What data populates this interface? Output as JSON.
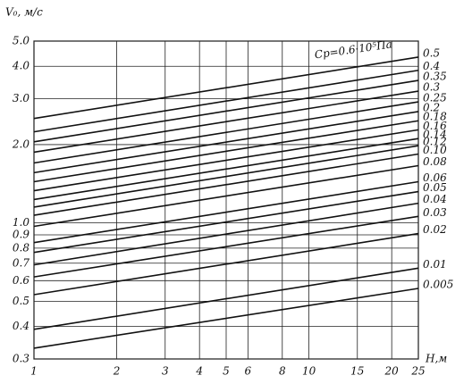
{
  "chart_data": {
    "type": "line",
    "y_label": "V₀, м/с",
    "x_label": "H,м",
    "annotation": "Cp=0.6·10⁵Па",
    "log_x": true,
    "log_y": true,
    "grid": true,
    "color": "#111111",
    "xlim": [
      1,
      25
    ],
    "xticks": [
      1,
      2,
      3,
      4,
      5,
      6,
      8,
      10,
      15,
      20,
      25
    ],
    "ylim": [
      0.3,
      5.0
    ],
    "yticks": [
      0.3,
      0.4,
      0.5,
      0.6,
      0.7,
      0.8,
      0.9,
      {
        "value": 1,
        "label": "1.0"
      },
      {
        "value": 2,
        "label": "2.0"
      },
      {
        "value": 3,
        "label": "3.0"
      },
      {
        "value": 4,
        "label": "4.0"
      },
      {
        "value": 5,
        "label": "5.0"
      }
    ],
    "x": [
      1,
      25
    ],
    "series": [
      {
        "name": "0.5",
        "values": [
          2.52,
          4.34
        ]
      },
      {
        "name": "0.4",
        "values": [
          2.24,
          3.86
        ]
      },
      {
        "name": "0.35",
        "values": [
          2.05,
          3.53
        ]
      },
      {
        "name": "0.3",
        "values": [
          1.87,
          3.21
        ]
      },
      {
        "name": "0.25",
        "values": [
          1.7,
          2.92
        ]
      },
      {
        "name": "0.2",
        "values": [
          1.56,
          2.68
        ]
      },
      {
        "name": "0.18",
        "values": [
          1.44,
          2.47
        ]
      },
      {
        "name": "0.16",
        "values": [
          1.33,
          2.28
        ]
      },
      {
        "name": "0.14",
        "values": [
          1.23,
          2.11
        ]
      },
      {
        "name": "0.12",
        "values": [
          1.15,
          1.98
        ]
      },
      {
        "name": "0.10",
        "values": [
          1.07,
          1.84
        ]
      },
      {
        "name": "0.08",
        "values": [
          0.97,
          1.66
        ]
      },
      {
        "name": "0.06",
        "values": [
          0.84,
          1.44
        ]
      },
      {
        "name": "0.05",
        "values": [
          0.77,
          1.32
        ]
      },
      {
        "name": "0.04",
        "values": [
          0.69,
          1.19
        ]
      },
      {
        "name": "0.03",
        "values": [
          0.62,
          1.06
        ]
      },
      {
        "name": "0.02",
        "values": [
          0.53,
          0.91
        ]
      },
      {
        "name": "0.01",
        "values": [
          0.39,
          0.67
        ]
      },
      {
        "name": "0.005",
        "values": [
          0.33,
          0.56
        ]
      }
    ]
  }
}
